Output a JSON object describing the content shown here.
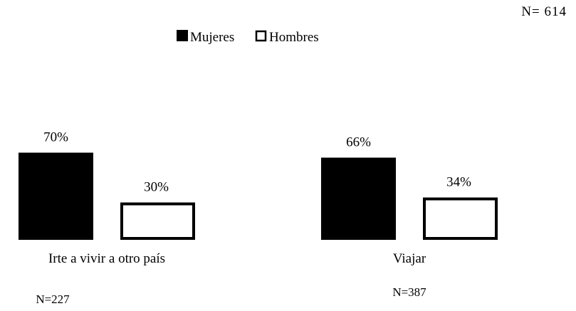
{
  "chart_data": {
    "type": "bar",
    "total_note": "N= 614",
    "categories": [
      "Irte a vivir a otro país",
      "Viajar"
    ],
    "category_notes": [
      "N=227",
      "N=387"
    ],
    "series": [
      {
        "name": "Mujeres",
        "values": [
          70,
          66
        ],
        "labels": [
          "70%",
          "66%"
        ],
        "color": "#000000",
        "style": "filled"
      },
      {
        "name": "Hombres",
        "values": [
          30,
          34
        ],
        "labels": [
          "30%",
          "34%"
        ],
        "color": "#ffffff",
        "style": "outlined"
      }
    ],
    "unit": "%",
    "ylim": [
      0,
      100
    ],
    "legend_position": "top-center",
    "grid": false,
    "axes_visible": false
  }
}
